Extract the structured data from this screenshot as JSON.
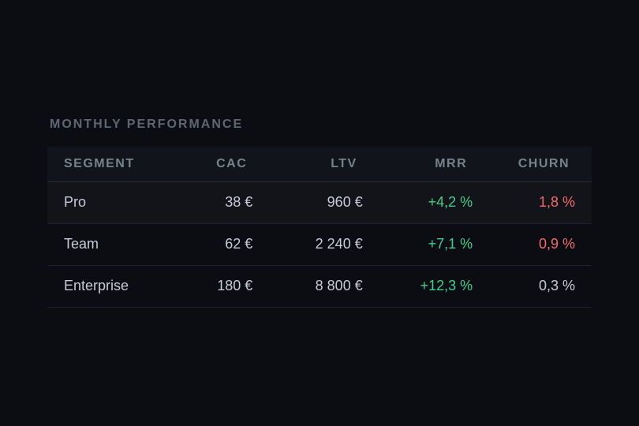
{
  "section": {
    "title": "MONTHLY PERFORMANCE"
  },
  "table": {
    "headers": {
      "segment": "SEGMENT",
      "cac": "CAC",
      "ltv": "LTV",
      "mrr": "MRR",
      "churn": "CHURN"
    },
    "rows": [
      {
        "segment": "Pro",
        "cac": "38 €",
        "ltv": "960 €",
        "mrr": "+4,2 %",
        "churn": "1,8 %",
        "churn_status": "negative"
      },
      {
        "segment": "Team",
        "cac": "62 €",
        "ltv": "2 240 €",
        "mrr": "+7,1 %",
        "churn": "0,9 %",
        "churn_status": "negative"
      },
      {
        "segment": "Enterprise",
        "cac": "180 €",
        "ltv": "8 800 €",
        "mrr": "+12,3 %",
        "churn": "0,3 %",
        "churn_status": "neutral"
      }
    ]
  },
  "colors": {
    "background": "#0b0d13",
    "positive": "#3ecf8e",
    "negative": "#f26b6b",
    "muted": "#7b808d"
  }
}
